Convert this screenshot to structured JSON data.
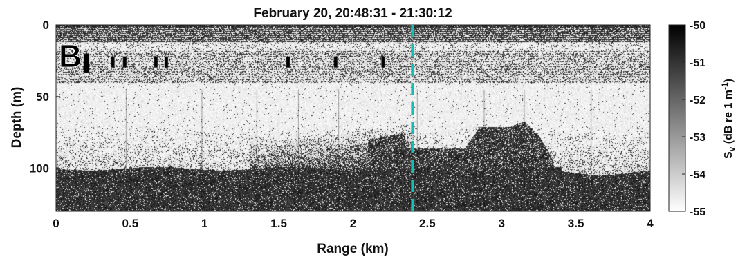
{
  "chart_data": {
    "type": "heatmap",
    "title": "February 20, 20:48:31 - 21:30:12",
    "panel_label": "B",
    "xlabel": "Range (km)",
    "ylabel": "Depth (m)",
    "xlim": [
      0,
      4
    ],
    "ylim": [
      0,
      130
    ],
    "y_reversed": true,
    "x_ticks": [
      "0",
      "0.5",
      "1",
      "1.5",
      "2",
      "2.5",
      "3",
      "3.5",
      "4"
    ],
    "x_tick_values": [
      0,
      0.5,
      1,
      1.5,
      2,
      2.5,
      3,
      3.5,
      4
    ],
    "y_ticks": [
      "0",
      "50",
      "100"
    ],
    "y_tick_values": [
      0,
      50,
      100
    ],
    "colorbar": {
      "label_main": "S",
      "label_sub": "v",
      "label_rest": " (dB re 1 m",
      "label_sup": "-1",
      "label_end": ")",
      "min": -55,
      "max": -50,
      "ticks": [
        "-50",
        "-51",
        "-52",
        "-53",
        "-54",
        "-55"
      ],
      "tick_values": [
        -50,
        -51,
        -52,
        -53,
        -54,
        -55
      ],
      "colormap": "gray_reversed"
    },
    "marker_line": {
      "x": 2.4,
      "style": "dashed",
      "color": "#16bdb5"
    },
    "grid": false,
    "features": {
      "surface_band_depth": [
        0,
        12
      ],
      "scattering_layer_depth": [
        18,
        40
      ],
      "seafloor_depth": 100,
      "dense_aggregation_x": [
        2.1,
        3.35
      ],
      "dense_aggregation_top_depth": 65
    }
  }
}
